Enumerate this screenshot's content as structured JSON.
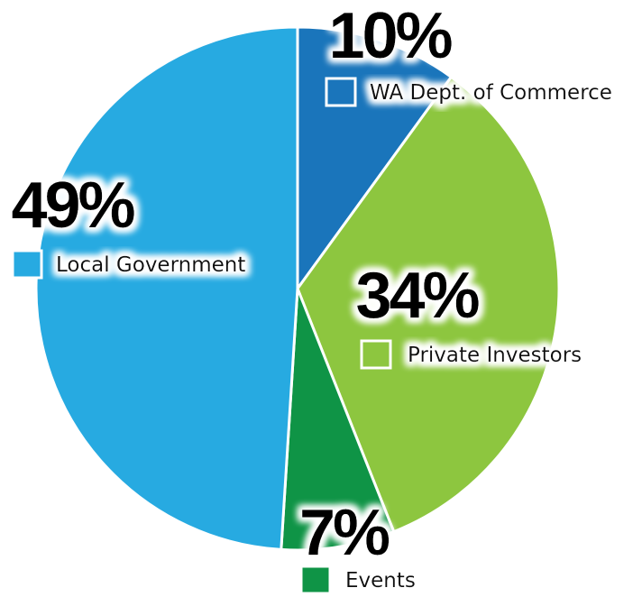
{
  "chart_data": {
    "type": "pie",
    "categories": [
      "WA Dept. of Commerce",
      "Private Investors",
      "Events",
      "Local Government"
    ],
    "values": [
      10,
      34,
      7,
      49
    ],
    "value_labels": [
      "10%",
      "34%",
      "7%",
      "49%"
    ],
    "colors": [
      "#1a75bb",
      "#8dc63f",
      "#0f9446",
      "#27aae1"
    ]
  }
}
